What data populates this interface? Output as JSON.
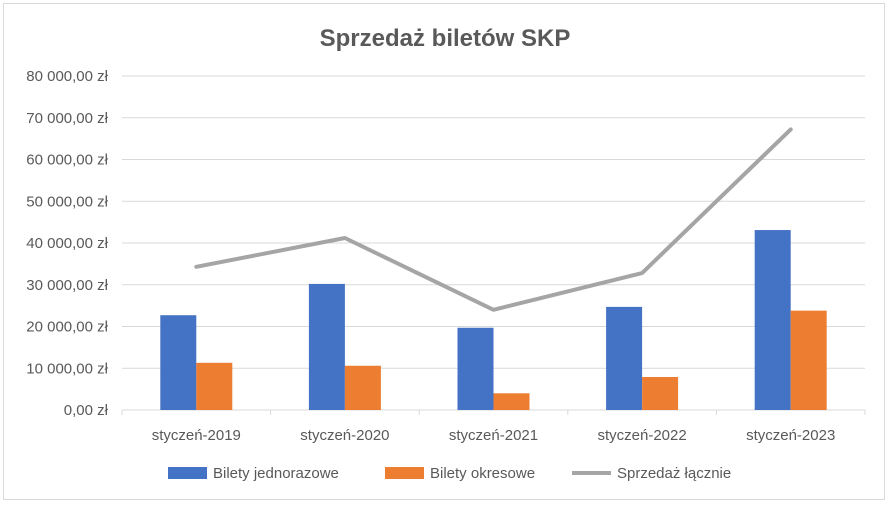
{
  "chart_data": {
    "type": "bar",
    "title": "Sprzedaż biletów SKP",
    "categories": [
      "styczeń-2019",
      "styczeń-2020",
      "styczeń-2021",
      "styczeń-2022",
      "styczeń-2023"
    ],
    "series": [
      {
        "name": "Bilety jednorazowe",
        "kind": "bar",
        "color": "#4472c4",
        "values": [
          22700,
          30200,
          19700,
          24700,
          43100
        ]
      },
      {
        "name": "Bilety okresowe",
        "kind": "bar",
        "color": "#ed7d31",
        "values": [
          11300,
          10600,
          4000,
          7900,
          23800
        ]
      },
      {
        "name": "Sprzedaż łącznie",
        "kind": "line",
        "color": "#a5a5a5",
        "values": [
          34300,
          41200,
          24000,
          32800,
          67200
        ]
      }
    ],
    "y_ticks": [
      "0,00 zł",
      "10 000,00 zł",
      "20 000,00 zł",
      "30 000,00 zł",
      "40 000,00 zł",
      "50 000,00 zł",
      "60 000,00 zł",
      "70 000,00 zł",
      "80 000,00 zł"
    ],
    "ylim": [
      0,
      80000
    ],
    "y_step": 10000,
    "grid": true,
    "legend_position": "bottom",
    "gridline_color": "#d9d9d9"
  }
}
